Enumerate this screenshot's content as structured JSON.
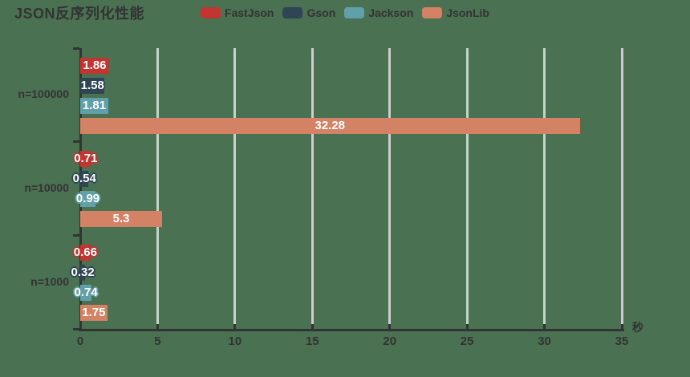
{
  "title": "JSON反序列化性能",
  "background_color": "#4a7152",
  "axis_color": "#333333",
  "grid_line_color": "#cbcfcb",
  "label_text_color": "#ffffff",
  "chart_data": {
    "type": "bar",
    "orientation": "horizontal",
    "title": "JSON反序列化性能",
    "categories": [
      "n=100000",
      "n=10000",
      "n=1000"
    ],
    "series": [
      {
        "name": "FastJson",
        "color": "#c23531",
        "values": [
          1.86,
          0.71,
          0.66
        ]
      },
      {
        "name": "Gson",
        "color": "#2f4554",
        "values": [
          1.58,
          0.54,
          0.32
        ]
      },
      {
        "name": "Jackson",
        "color": "#61a0a8",
        "values": [
          1.81,
          0.99,
          0.74
        ]
      },
      {
        "name": "JsonLib",
        "color": "#d48265",
        "values": [
          32.28,
          5.3,
          1.75
        ]
      }
    ],
    "xlabel": "秒",
    "ylabel": "",
    "xlim": [
      0,
      35
    ],
    "x_ticks": [
      0,
      5,
      10,
      15,
      20,
      25,
      30,
      35
    ],
    "grid": true,
    "legend_position": "top"
  }
}
